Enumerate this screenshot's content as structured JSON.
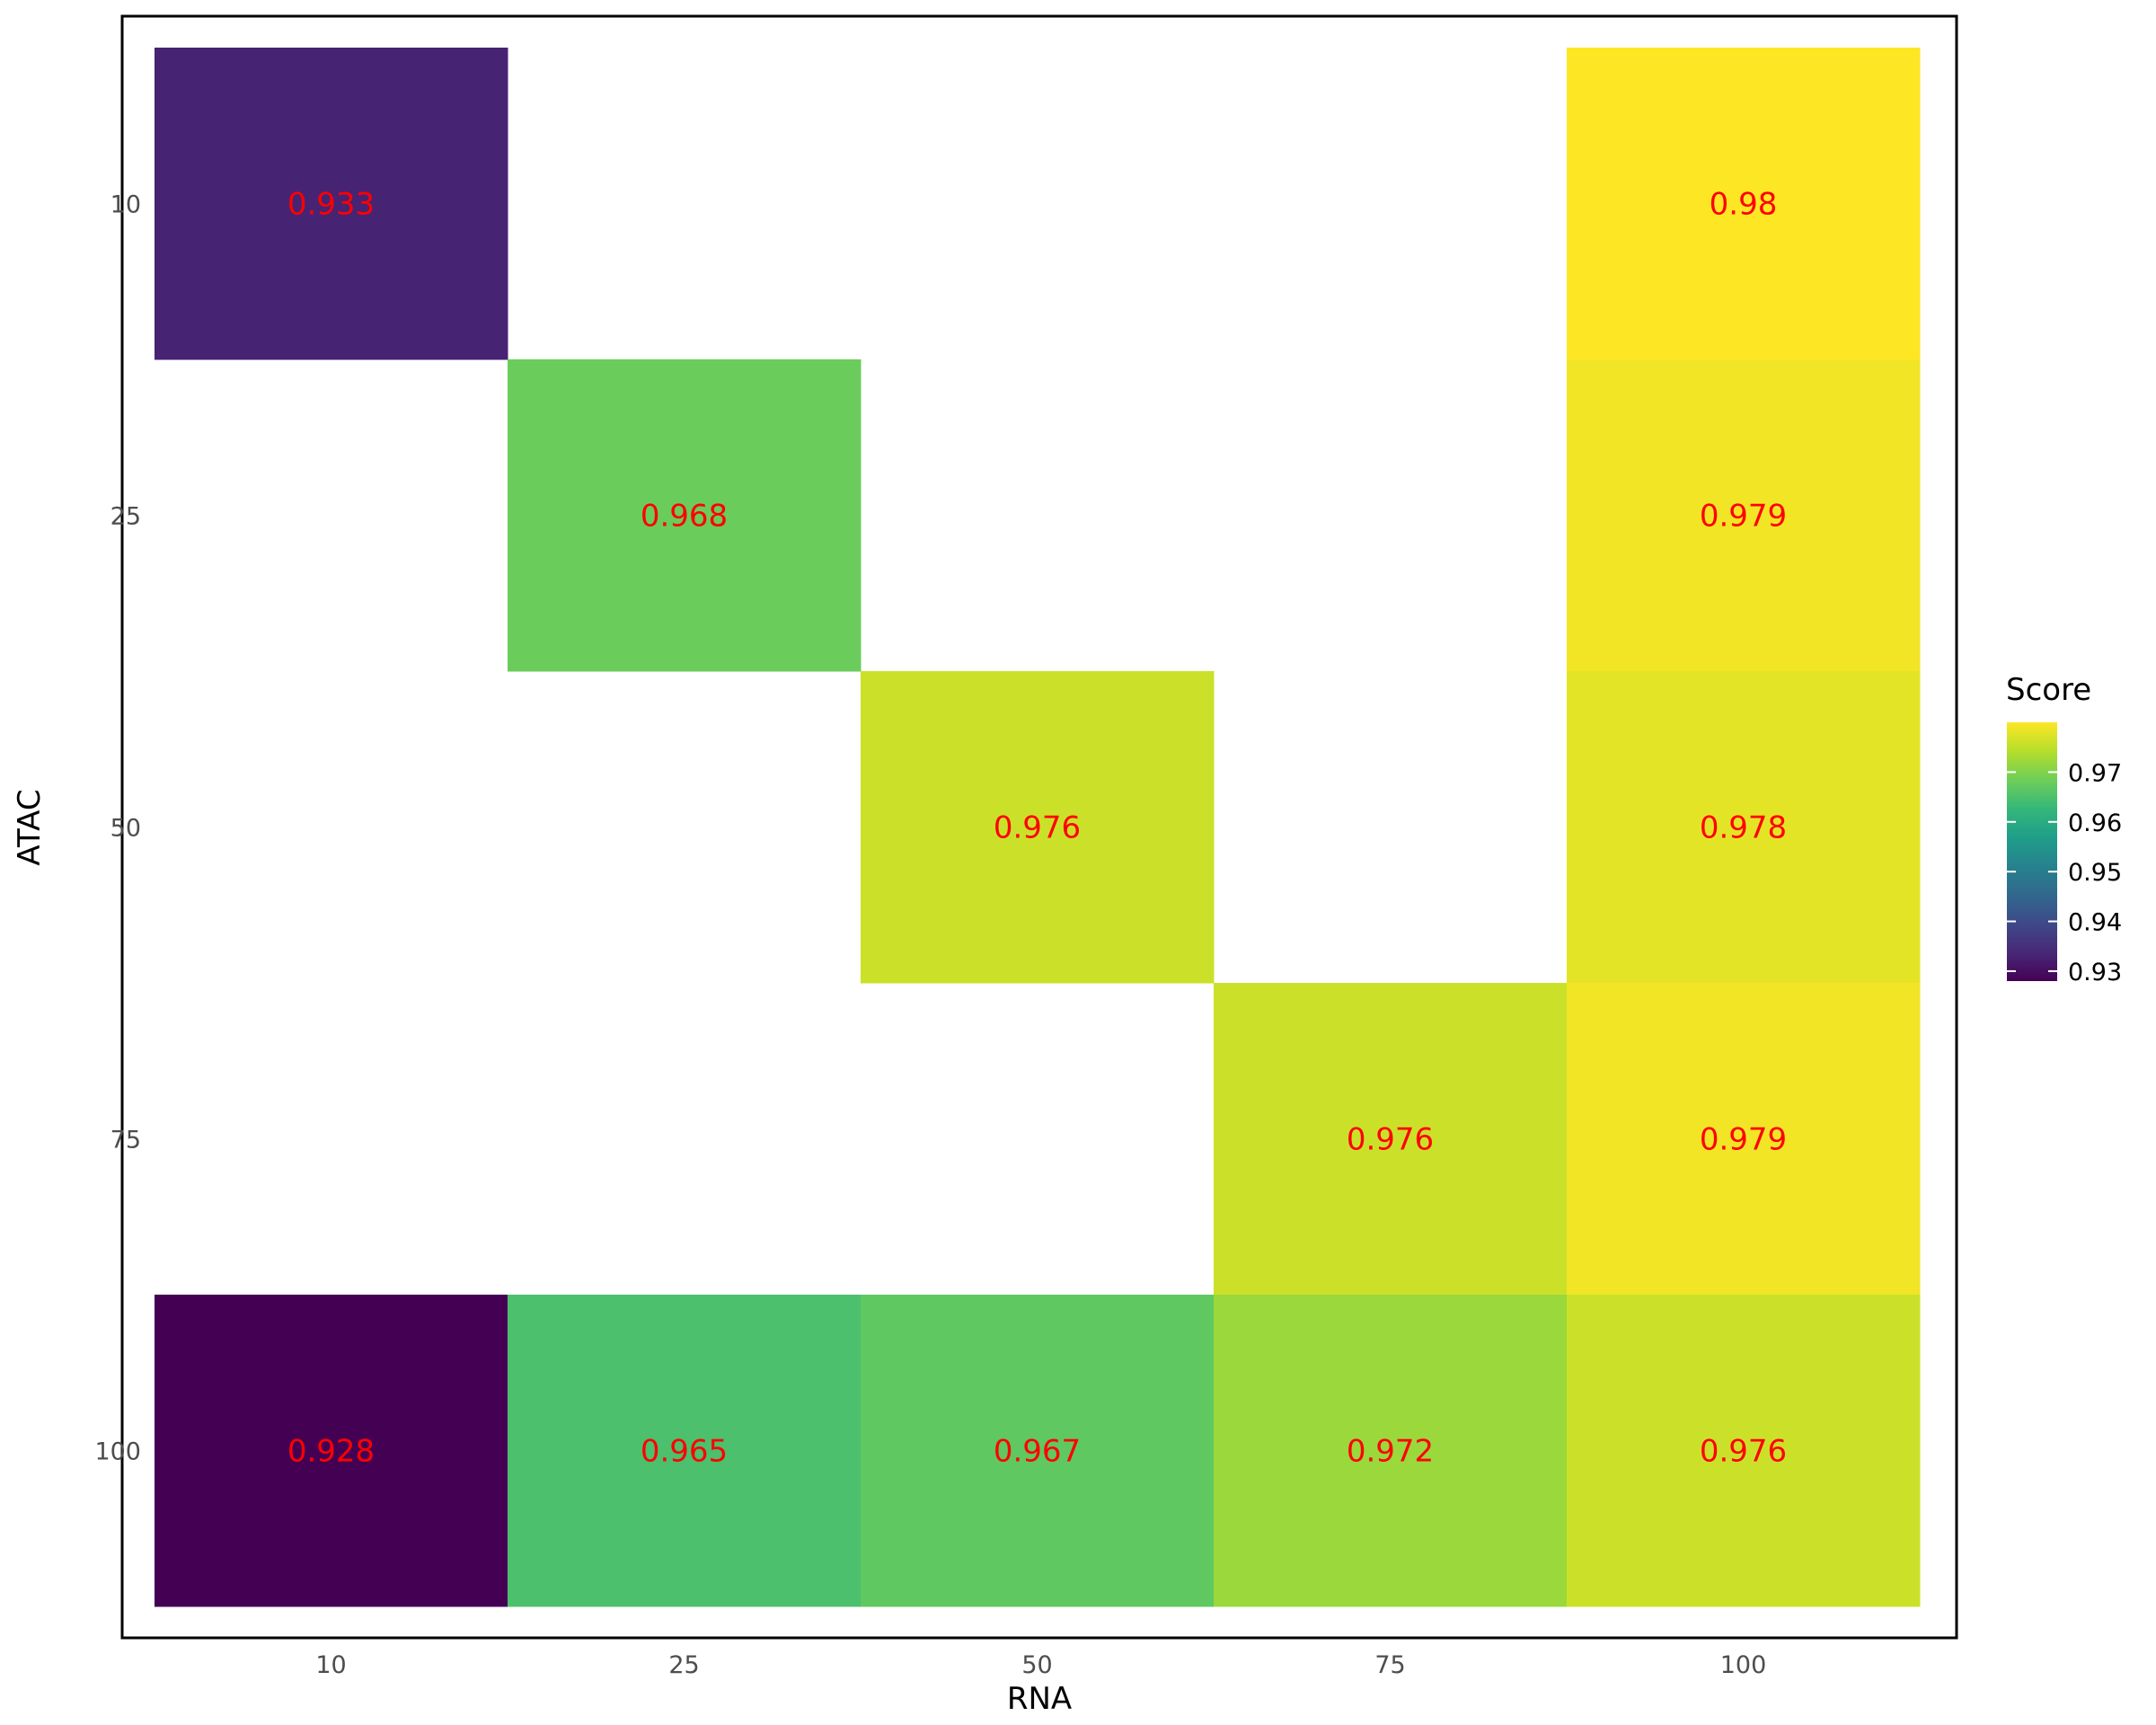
{
  "chart_data": {
    "type": "heatmap",
    "xlabel": "RNA",
    "ylabel": "ATAC",
    "x_categories": [
      "10",
      "25",
      "50",
      "75",
      "100"
    ],
    "y_categories": [
      "10",
      "25",
      "50",
      "75",
      "100"
    ],
    "cells": [
      {
        "x": "10",
        "y": "10",
        "value": 0.933,
        "label": "0.933"
      },
      {
        "x": "100",
        "y": "10",
        "value": 0.98,
        "label": "0.98"
      },
      {
        "x": "25",
        "y": "25",
        "value": 0.968,
        "label": "0.968"
      },
      {
        "x": "100",
        "y": "25",
        "value": 0.979,
        "label": "0.979"
      },
      {
        "x": "50",
        "y": "50",
        "value": 0.976,
        "label": "0.976"
      },
      {
        "x": "100",
        "y": "50",
        "value": 0.978,
        "label": "0.978"
      },
      {
        "x": "75",
        "y": "75",
        "value": 0.976,
        "label": "0.976"
      },
      {
        "x": "100",
        "y": "75",
        "value": 0.979,
        "label": "0.979"
      },
      {
        "x": "10",
        "y": "100",
        "value": 0.928,
        "label": "0.928"
      },
      {
        "x": "25",
        "y": "100",
        "value": 0.965,
        "label": "0.965"
      },
      {
        "x": "50",
        "y": "100",
        "value": 0.967,
        "label": "0.967"
      },
      {
        "x": "75",
        "y": "100",
        "value": 0.972,
        "label": "0.972"
      },
      {
        "x": "100",
        "y": "100",
        "value": 0.976,
        "label": "0.976"
      }
    ],
    "legend": {
      "title": "Score",
      "placement": "right",
      "min": 0.928,
      "max": 0.98,
      "ticks": [
        0.93,
        0.94,
        0.95,
        0.96,
        0.97
      ],
      "tick_labels": [
        "0.93",
        "0.94",
        "0.95",
        "0.96",
        "0.97"
      ],
      "colormap": "viridis"
    },
    "label_color": "#ff0000",
    "grid": false
  }
}
